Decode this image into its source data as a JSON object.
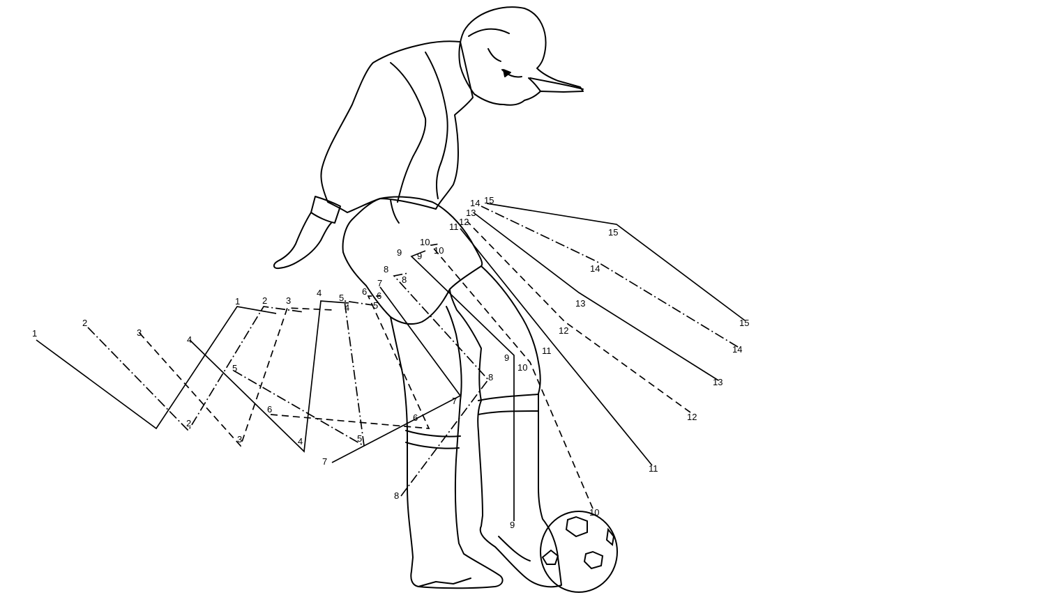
{
  "figure": {
    "subject": "soccer-player-juggling-ball",
    "icons": [
      "player-figure-icon",
      "soccer-ball-icon"
    ]
  },
  "trajectories": [
    {
      "id": "1",
      "style": "solid",
      "labels": [
        "1",
        "1"
      ]
    },
    {
      "id": "2",
      "style": "dash-dot",
      "labels": [
        "2",
        "2",
        "2"
      ]
    },
    {
      "id": "3",
      "style": "dashed",
      "labels": [
        "3",
        "3",
        "3"
      ]
    },
    {
      "id": "4",
      "style": "solid",
      "labels": [
        "4",
        "4",
        "4",
        "4"
      ]
    },
    {
      "id": "5",
      "style": "dash-dot",
      "labels": [
        "5",
        "5",
        "5",
        "5"
      ]
    },
    {
      "id": "6",
      "style": "dashed",
      "labels": [
        "6",
        "6",
        "6",
        "6"
      ]
    },
    {
      "id": "7",
      "style": "solid",
      "labels": [
        "7",
        "7",
        "7"
      ]
    },
    {
      "id": "8",
      "style": "dash-dot",
      "labels": [
        "8",
        "8",
        "8",
        "8"
      ]
    },
    {
      "id": "9",
      "style": "solid",
      "labels": [
        "9",
        "9",
        "9",
        "9"
      ]
    },
    {
      "id": "10",
      "style": "dashed",
      "labels": [
        "10",
        "10",
        "10",
        "10"
      ]
    },
    {
      "id": "11",
      "style": "solid",
      "labels": [
        "11",
        "11",
        "11"
      ]
    },
    {
      "id": "12",
      "style": "dashed",
      "labels": [
        "12",
        "12",
        "12"
      ]
    },
    {
      "id": "13",
      "style": "solid",
      "labels": [
        "13",
        "13",
        "13"
      ]
    },
    {
      "id": "14",
      "style": "dash-dot",
      "labels": [
        "14",
        "14",
        "14"
      ]
    },
    {
      "id": "15",
      "style": "solid",
      "labels": [
        "15",
        "15",
        "15"
      ]
    }
  ]
}
